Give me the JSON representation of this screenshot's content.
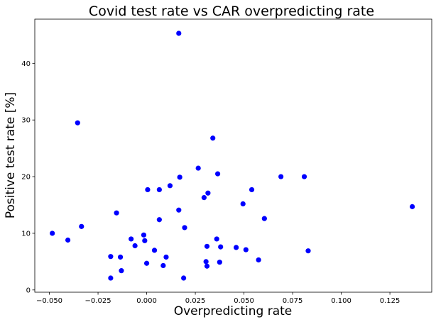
{
  "chart_data": {
    "type": "scatter",
    "title": "Covid test rate vs CAR overpredicting rate",
    "xlabel": "Overpredicting rate",
    "ylabel": "Positive test rate [%]",
    "xlim": [
      -0.0575,
      0.1465
    ],
    "ylim": [
      -0.4,
      47.8
    ],
    "xticks": [
      -0.05,
      -0.025,
      0.0,
      0.025,
      0.05,
      0.075,
      0.1,
      0.125
    ],
    "xtick_labels": [
      "−0.050",
      "−0.025",
      "0.000",
      "0.025",
      "0.050",
      "0.075",
      "0.100",
      "0.125"
    ],
    "yticks": [
      0,
      10,
      20,
      30,
      40
    ],
    "ytick_labels": [
      "0",
      "10",
      "20",
      "30",
      "40"
    ],
    "grid": false,
    "marker_color": "#0000ff",
    "points": [
      {
        "x": 0.0165,
        "y": 45.3
      },
      {
        "x": -0.0355,
        "y": 29.5
      },
      {
        "x": 0.034,
        "y": 26.8
      },
      {
        "x": 0.0265,
        "y": 21.5
      },
      {
        "x": 0.0365,
        "y": 20.5
      },
      {
        "x": 0.017,
        "y": 19.9
      },
      {
        "x": 0.069,
        "y": 20.0
      },
      {
        "x": 0.081,
        "y": 20.0
      },
      {
        "x": 0.012,
        "y": 18.4
      },
      {
        "x": 0.0005,
        "y": 17.7
      },
      {
        "x": 0.0065,
        "y": 17.7
      },
      {
        "x": 0.054,
        "y": 17.7
      },
      {
        "x": 0.0315,
        "y": 17.1
      },
      {
        "x": 0.0295,
        "y": 16.3
      },
      {
        "x": 0.0495,
        "y": 15.2
      },
      {
        "x": 0.1365,
        "y": 14.7
      },
      {
        "x": 0.0165,
        "y": 14.1
      },
      {
        "x": -0.0155,
        "y": 13.6
      },
      {
        "x": 0.0605,
        "y": 12.6
      },
      {
        "x": 0.0065,
        "y": 12.4
      },
      {
        "x": -0.0335,
        "y": 11.2
      },
      {
        "x": 0.0195,
        "y": 11.0
      },
      {
        "x": -0.0485,
        "y": 10.0
      },
      {
        "x": -0.0015,
        "y": 9.7
      },
      {
        "x": -0.008,
        "y": 9.0
      },
      {
        "x": 0.036,
        "y": 9.0
      },
      {
        "x": -0.0405,
        "y": 8.8
      },
      {
        "x": -0.001,
        "y": 8.7
      },
      {
        "x": -0.006,
        "y": 7.8
      },
      {
        "x": 0.031,
        "y": 7.7
      },
      {
        "x": 0.038,
        "y": 7.6
      },
      {
        "x": 0.046,
        "y": 7.5
      },
      {
        "x": 0.051,
        "y": 7.1
      },
      {
        "x": 0.004,
        "y": 7.0
      },
      {
        "x": 0.083,
        "y": 6.9
      },
      {
        "x": -0.0185,
        "y": 5.9
      },
      {
        "x": -0.0135,
        "y": 5.8
      },
      {
        "x": 0.01,
        "y": 5.8
      },
      {
        "x": 0.0575,
        "y": 5.3
      },
      {
        "x": 0.0305,
        "y": 5.0
      },
      {
        "x": 0.0375,
        "y": 4.9
      },
      {
        "x": 0.0,
        "y": 4.7
      },
      {
        "x": 0.0085,
        "y": 4.3
      },
      {
        "x": 0.031,
        "y": 4.2
      },
      {
        "x": -0.013,
        "y": 3.4
      },
      {
        "x": -0.0185,
        "y": 2.1
      },
      {
        "x": 0.019,
        "y": 2.1
      }
    ]
  }
}
